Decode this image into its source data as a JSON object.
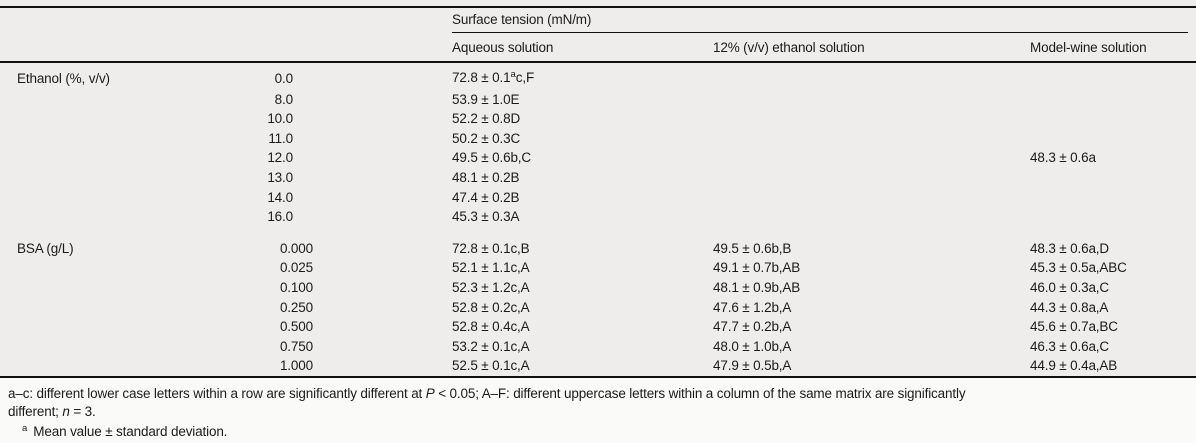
{
  "table": {
    "group_header": "Surface tension (mN/m)",
    "columns": [
      "Aqueous solution",
      "12% (v/v) ethanol solution",
      "Model-wine solution"
    ],
    "sections": [
      {
        "label": "Ethanol (%, v/v)",
        "dose_format": "one-dec",
        "rows": [
          {
            "dose": "0.0",
            "cells": [
              "72.8 ± 0.1^a^c,F",
              "",
              ""
            ]
          },
          {
            "dose": "8.0",
            "cells": [
              "53.9 ± 1.0E",
              "",
              ""
            ]
          },
          {
            "dose": "10.0",
            "cells": [
              "52.2 ± 0.8D",
              "",
              ""
            ]
          },
          {
            "dose": "11.0",
            "cells": [
              "50.2 ± 0.3C",
              "",
              ""
            ]
          },
          {
            "dose": "12.0",
            "cells": [
              "49.5 ± 0.6b,C",
              "",
              "48.3 ± 0.6a"
            ]
          },
          {
            "dose": "13.0",
            "cells": [
              "48.1 ± 0.2B",
              "",
              ""
            ]
          },
          {
            "dose": "14.0",
            "cells": [
              "47.4 ± 0.2B",
              "",
              ""
            ]
          },
          {
            "dose": "16.0",
            "cells": [
              "45.3 ± 0.3A",
              "",
              ""
            ]
          }
        ]
      },
      {
        "label": "BSA (g/L)",
        "dose_format": "three-dec",
        "rows": [
          {
            "dose": "0.000",
            "cells": [
              "72.8 ± 0.1c,B",
              "49.5 ± 0.6b,B",
              "48.3 ± 0.6a,D"
            ]
          },
          {
            "dose": "0.025",
            "cells": [
              "52.1 ± 1.1c,A",
              "49.1 ± 0.7b,AB",
              "45.3 ± 0.5a,ABC"
            ]
          },
          {
            "dose": "0.100",
            "cells": [
              "52.3 ± 1.2c,A",
              "48.1 ± 0.9b,AB",
              "46.0 ± 0.3a,C"
            ]
          },
          {
            "dose": "0.250",
            "cells": [
              "52.8 ± 0.2c,A",
              "47.6 ± 1.2b,A",
              "44.3 ± 0.8a,A"
            ]
          },
          {
            "dose": "0.500",
            "cells": [
              "52.8 ± 0.4c,A",
              "47.7 ± 0.2b,A",
              "45.6 ± 0.7a,BC"
            ]
          },
          {
            "dose": "0.750",
            "cells": [
              "53.2 ± 0.1c,A",
              "48.0 ± 1.0b,A",
              "46.3 ± 0.6a,C"
            ]
          },
          {
            "dose": "1.000",
            "cells": [
              "52.5 ± 0.1c,A",
              "47.9 ± 0.5b,A",
              "44.9 ± 0.4a,AB"
            ]
          }
        ]
      }
    ]
  },
  "footnotes": {
    "line1_segments": [
      {
        "text": "a–c: different lower case letters within a row are significantly different at "
      },
      {
        "text": "P",
        "italic": true
      },
      {
        "text": " < 0.05; A–F: different uppercase letters within a column of the same matrix are significantly"
      },
      {
        "break": true
      },
      {
        "text": "different; "
      },
      {
        "text": "n",
        "italic": true
      },
      {
        "text": " = 3."
      }
    ],
    "note2_marker": "a",
    "note2_text": "Mean value ± standard deviation."
  },
  "colors": {
    "table_background": "#eeedeb",
    "page_background": "#fafaf8",
    "rule": "#111111",
    "text": "#1b1b1b"
  }
}
